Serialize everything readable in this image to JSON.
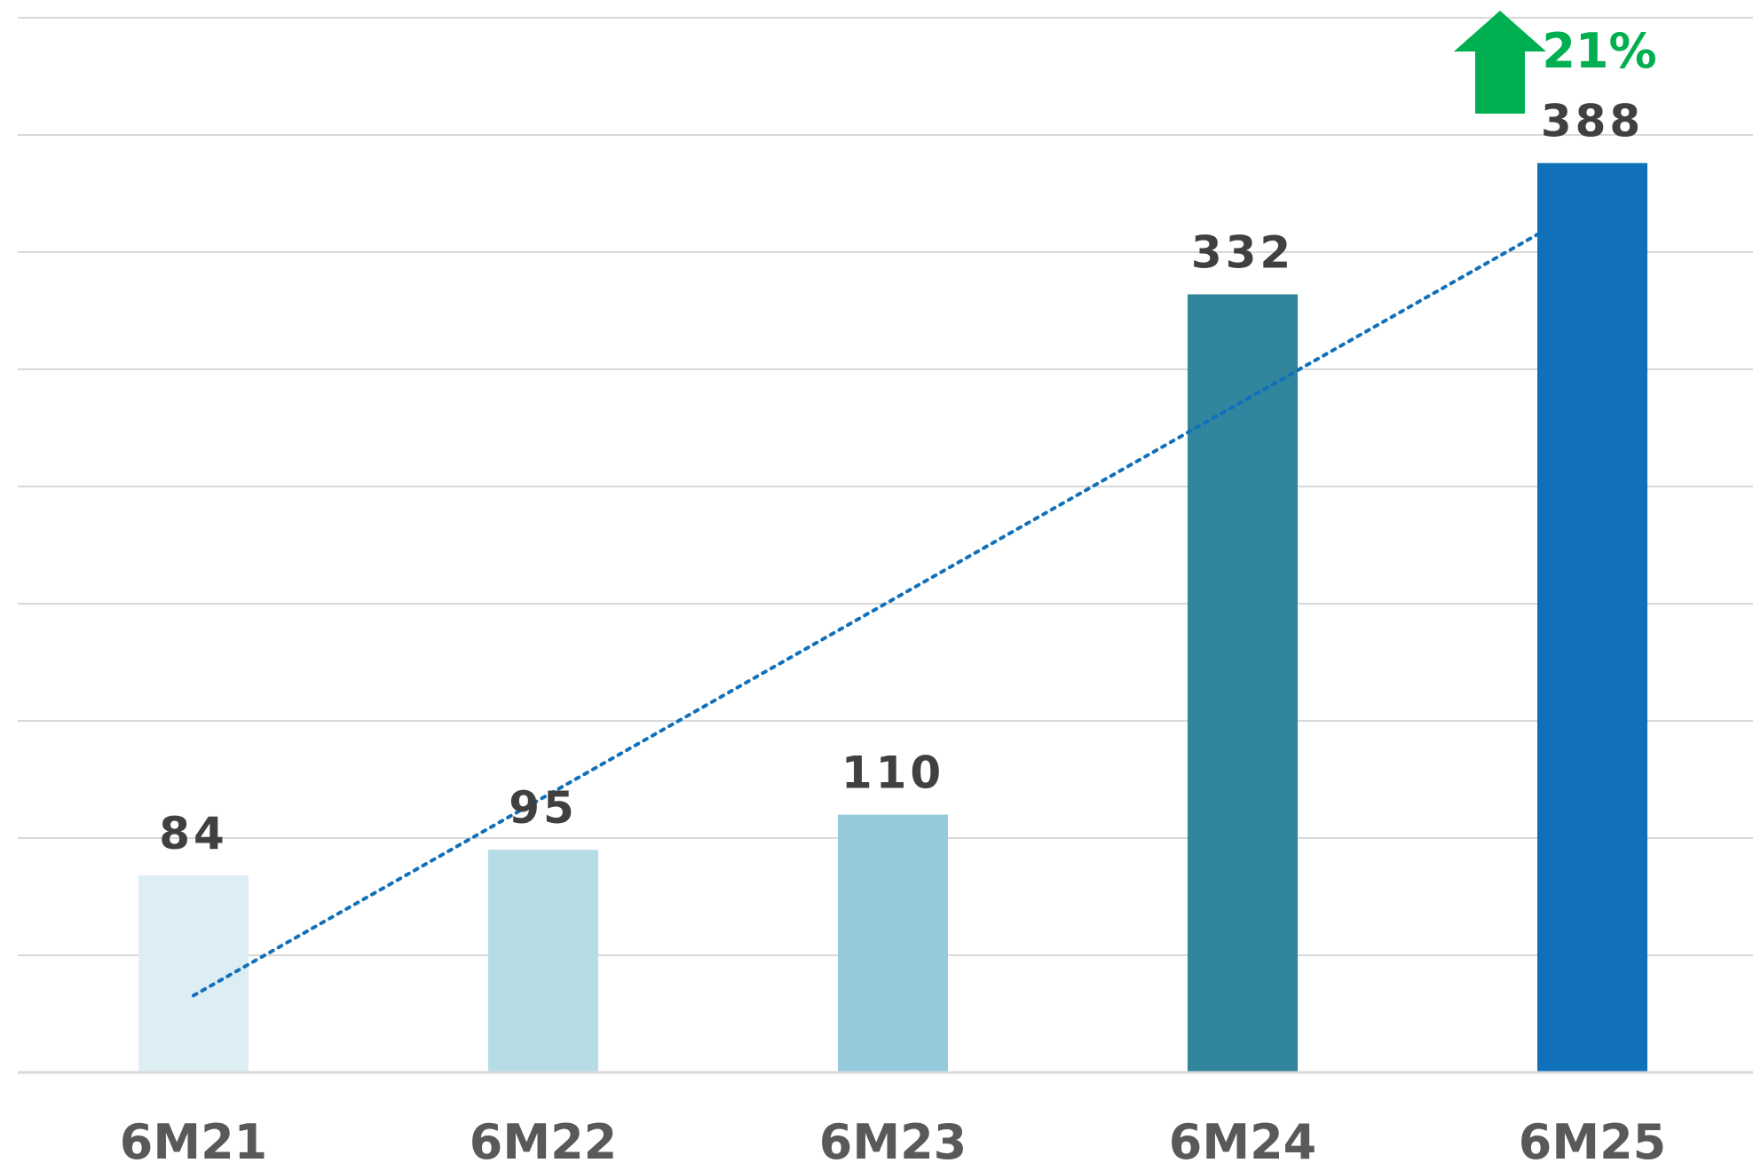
{
  "chart_data": {
    "type": "bar",
    "title": "",
    "xlabel": "",
    "ylabel": "",
    "categories": [
      "6M21",
      "6M22",
      "6M23",
      "6M24",
      "6M25"
    ],
    "values": [
      84,
      95,
      110,
      332,
      388
    ],
    "data_labels": [
      "84",
      "95",
      "110",
      "332",
      "388"
    ],
    "bar_colors": [
      "#ddedf4",
      "#b6dce6",
      "#94cadb",
      "#31859c",
      "#1070ba"
    ],
    "ylim": [
      0,
      450
    ],
    "gridline_step": 50,
    "grid": true,
    "legend": "none",
    "trendline": {
      "type": "linear",
      "style": "dotted",
      "color": "#1070ba"
    },
    "annotation": {
      "text": "21%",
      "icon": "up-arrow-icon",
      "color": "#00b050",
      "target": "6M25"
    }
  }
}
